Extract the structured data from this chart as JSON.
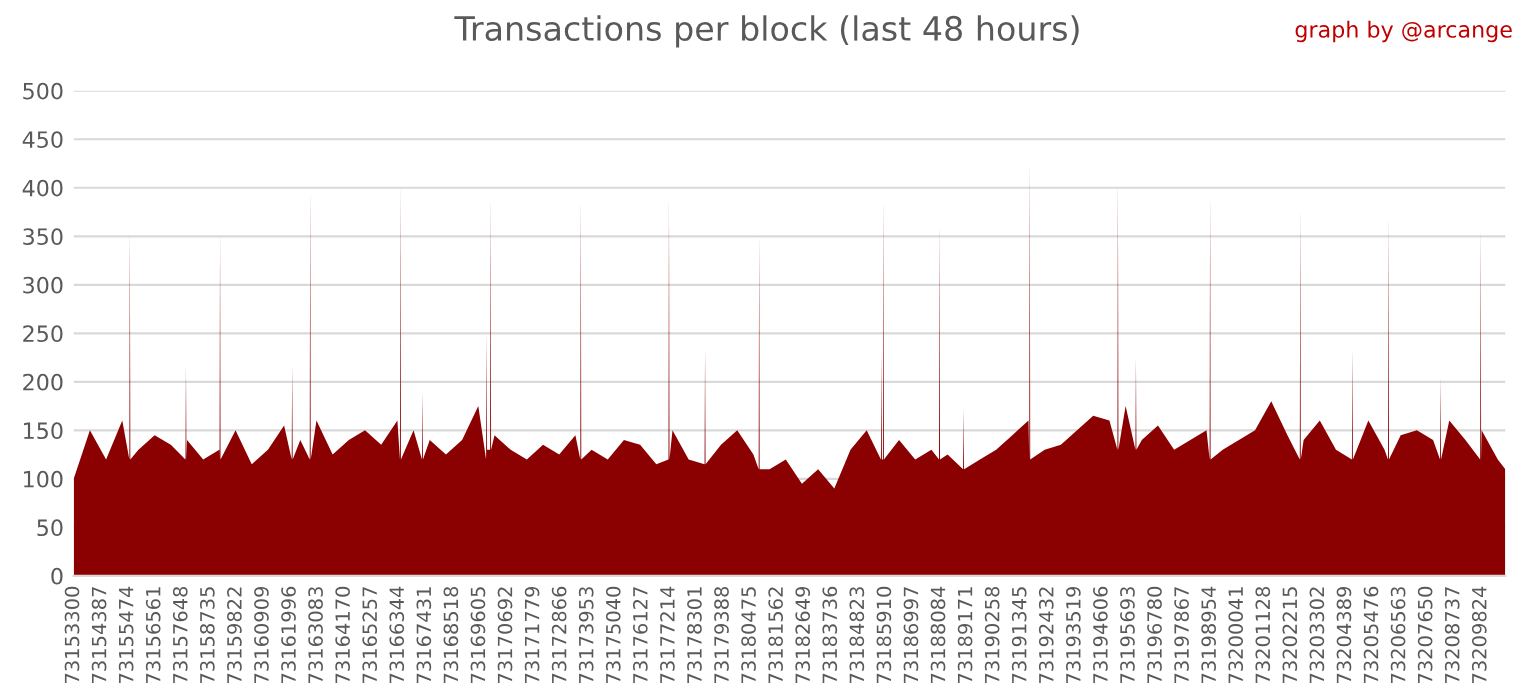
{
  "chart_data": {
    "type": "area",
    "title": "Transactions per block (last 48 hours)",
    "annotations": [
      "graph by @arcange"
    ],
    "x": [
      73153300,
      73153950,
      73154600,
      73155250,
      73155534,
      73155554,
      73155574,
      73155900,
      73156550,
      73157200,
      73157788,
      73157808,
      73157828,
      73157850,
      73158500,
      73159150,
      73159157,
      73159177,
      73159197,
      73159800,
      73160450,
      73161100,
      73161750,
      73162055,
      73162075,
      73162095,
      73162400,
      73162779,
      73162799,
      73162819,
      73163050,
      73163700,
      73164350,
      73165000,
      73165650,
      73166300,
      73166402,
      73166422,
      73166442,
      73166950,
      73167287,
      73167307,
      73167327,
      73167600,
      73168250,
      73168900,
      73169550,
      73169863,
      73169883,
      73169903,
      73170024,
      73170044,
      73170064,
      73170200,
      73170850,
      73171500,
      73172150,
      73172800,
      73173450,
      73173647,
      73173667,
      73173687,
      73174100,
      73174750,
      73175400,
      73176050,
      73176700,
      73177189,
      73177209,
      73177229,
      73177350,
      73178000,
      73178638,
      73178658,
      73178678,
      73179300,
      73179950,
      73180600,
      73180811,
      73180831,
      73180851,
      73181250,
      73181900,
      73182550,
      73183200,
      73183850,
      73184500,
      73185150,
      73185722,
      73185742,
      73185762,
      73185802,
      73185822,
      73185842,
      73186450,
      73187100,
      73187750,
      73188056,
      73188076,
      73188096,
      73188400,
      73189022,
      73189042,
      73189062,
      73189700,
      73190350,
      73191000,
      73191650,
      73191679,
      73191699,
      73191719,
      73192300,
      73192950,
      73193600,
      73194250,
      73194900,
      73195221,
      73195241,
      73195261,
      73195550,
      73195945,
      73195965,
      73195985,
      73196200,
      73196850,
      73197500,
      73198150,
      73198800,
      73198924,
      73198944,
      73198964,
      73199450,
      73200100,
      73200750,
      73201400,
      73202050,
      73202546,
      73202566,
      73202586,
      73202700,
      73203350,
      73204000,
      73204639,
      73204659,
      73204679,
      73205300,
      73205950,
      73206088,
      73206108,
      73206128,
      73206600,
      73207250,
      73207900,
      73208181,
      73208201,
      73208221,
      73208550,
      73209200,
      73209791,
      73209811,
      73209831,
      73209850,
      73210500,
      73210800
    ],
    "series": [
      {
        "color": "#8b0000",
        "values": [
          100,
          150,
          120,
          160,
          120,
          360,
          120,
          130,
          145,
          135,
          120,
          218,
          120,
          140,
          120,
          130,
          120,
          358,
          120,
          150,
          115,
          130,
          155,
          120,
          217,
          120,
          140,
          120,
          402,
          120,
          160,
          125,
          140,
          150,
          135,
          160,
          120,
          408,
          120,
          150,
          120,
          190,
          120,
          140,
          125,
          140,
          175,
          120,
          250,
          130,
          130,
          395,
          130,
          145,
          130,
          120,
          135,
          125,
          145,
          120,
          392,
          120,
          130,
          120,
          140,
          135,
          115,
          120,
          395,
          120,
          150,
          120,
          115,
          235,
          115,
          135,
          150,
          125,
          110,
          355,
          110,
          110,
          120,
          95,
          110,
          90,
          130,
          150,
          120,
          230,
          120,
          120,
          393,
          120,
          140,
          120,
          130,
          120,
          367,
          120,
          125,
          110,
          172,
          110,
          120,
          130,
          145,
          160,
          120,
          432,
          120,
          130,
          135,
          150,
          165,
          160,
          130,
          410,
          130,
          175,
          130,
          225,
          130,
          140,
          155,
          130,
          140,
          150,
          120,
          397,
          120,
          130,
          140,
          150,
          180,
          145,
          120,
          382,
          120,
          140,
          160,
          130,
          120,
          235,
          120,
          160,
          130,
          120,
          375,
          120,
          145,
          150,
          140,
          120,
          205,
          120,
          160,
          140,
          120,
          362,
          120,
          150,
          120,
          110
        ]
      }
    ],
    "xlim": [
      73153300,
      73210800
    ],
    "xticks": [
      73153300,
      73154387,
      73155474,
      73156561,
      73157648,
      73158735,
      73159822,
      73160909,
      73161996,
      73163083,
      73164170,
      73165257,
      73166344,
      73167431,
      73168518,
      73169605,
      73170692,
      73171779,
      73172866,
      73173953,
      73175040,
      73176127,
      73177214,
      73178301,
      73179388,
      73180475,
      73181562,
      73182649,
      73183736,
      73184823,
      73185910,
      73186997,
      73188084,
      73189171,
      73190258,
      73191345,
      73192432,
      73193519,
      73194606,
      73195693,
      73196780,
      73197867,
      73198954,
      73200041,
      73201128,
      73202215,
      73203302,
      73204389,
      73205476,
      73206563,
      73207650,
      73208737,
      73209824
    ],
    "ylim": [
      0,
      500
    ],
    "yticks": [
      0,
      50,
      100,
      150,
      200,
      250,
      300,
      350,
      400,
      450,
      500
    ],
    "grid": "y"
  }
}
